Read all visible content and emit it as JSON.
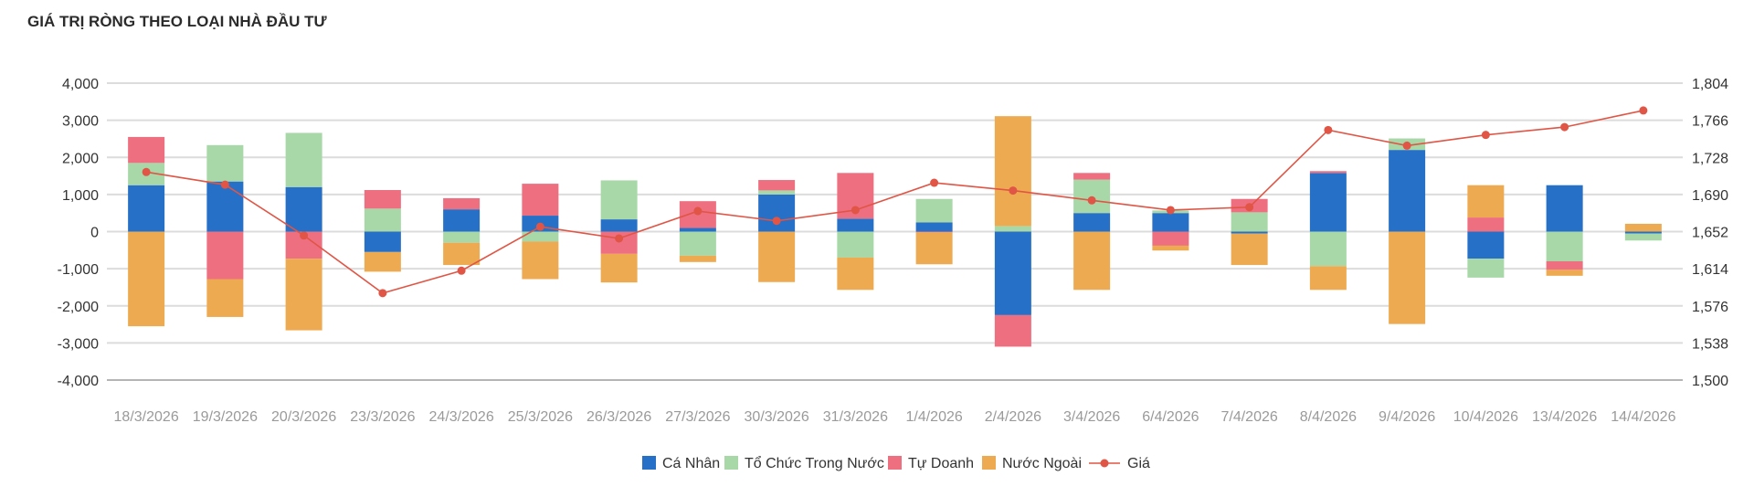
{
  "chart_data": {
    "type": "bar",
    "stacked": true,
    "title": "GIÁ TRỊ RÒNG THEO LOẠI NHÀ ĐẦU TƯ",
    "categories": [
      "18/3/2026",
      "19/3/2026",
      "20/3/2026",
      "23/3/2026",
      "24/3/2026",
      "25/3/2026",
      "26/3/2026",
      "27/3/2026",
      "30/3/2026",
      "31/3/2026",
      "1/4/2026",
      "2/4/2026",
      "3/4/2026",
      "6/4/2026",
      "7/4/2026",
      "8/4/2026",
      "9/4/2026",
      "10/4/2026",
      "13/4/2026",
      "14/4/2026"
    ],
    "ylim_left": [
      -4000,
      4000
    ],
    "yticks_left": [
      "4,000",
      "3,000",
      "2,000",
      "1,000",
      "0",
      "-1,000",
      "-2,000",
      "-3,000",
      "-4,000"
    ],
    "ylim_right": [
      1500,
      1804
    ],
    "yticks_right": [
      "1,804",
      "1,766",
      "1,728",
      "1,690",
      "1,652",
      "1,614",
      "1,576",
      "1,538",
      "1,500"
    ],
    "grid": true,
    "legend_position": "bottom",
    "series": [
      {
        "name": "Cá Nhân",
        "color": "#2670c8",
        "values": [
          1250,
          1350,
          1200,
          -550,
          600,
          430,
          330,
          100,
          1000,
          350,
          250,
          -2250,
          500,
          500,
          -50,
          1580,
          2200,
          -730,
          1250,
          -50
        ]
      },
      {
        "name": "Tổ Chức Trong Nước",
        "color": "#a8d8a8",
        "values": [
          600,
          980,
          1460,
          620,
          -300,
          -270,
          1050,
          -650,
          110,
          -700,
          630,
          150,
          900,
          70,
          520,
          -930,
          310,
          -510,
          -800,
          -190
        ]
      },
      {
        "name": "Tự Doanh",
        "color": "#ee6f80",
        "values": [
          700,
          -1280,
          -730,
          500,
          300,
          860,
          -600,
          720,
          280,
          1230,
          -20,
          -850,
          180,
          -380,
          360,
          50,
          0,
          380,
          -230,
          0
        ]
      },
      {
        "name": "Nước Ngoài",
        "color": "#eeaa50",
        "values": [
          -2550,
          -1020,
          -1930,
          -530,
          -600,
          -1010,
          -770,
          -170,
          -1360,
          -870,
          -860,
          2960,
          -1570,
          -130,
          -850,
          -640,
          -2490,
          870,
          -160,
          210
        ]
      }
    ],
    "line": {
      "name": "Giá",
      "color": "#e05545",
      "values": [
        1713,
        1700,
        1648,
        1589,
        1612,
        1657,
        1645,
        1673,
        1663,
        1674,
        1702,
        1694,
        1684,
        1674,
        1677,
        1756,
        1740,
        1751,
        1759,
        1776
      ]
    }
  }
}
